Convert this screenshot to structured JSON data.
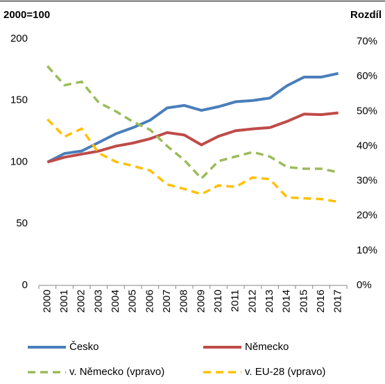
{
  "chart_data": {
    "type": "line",
    "y_label": "2000=100",
    "y2_label": "Rozdíl",
    "categories": [
      "2000",
      "2001",
      "2002",
      "2003",
      "2004",
      "2005",
      "2006",
      "2007",
      "2008",
      "2009",
      "2010",
      "2011",
      "2012",
      "2013",
      "2014",
      "2015",
      "2016",
      "2017"
    ],
    "ylim": [
      0,
      200
    ],
    "yticks": [
      0,
      50,
      100,
      150,
      200
    ],
    "y2lim": [
      0,
      70
    ],
    "y2ticks": [
      {
        "value": 0,
        "label": "0%"
      },
      {
        "value": 10,
        "label": "10%"
      },
      {
        "value": 20,
        "label": "20%"
      },
      {
        "value": 30,
        "label": "30%"
      },
      {
        "value": 40,
        "label": "40%"
      },
      {
        "value": 50,
        "label": "50%"
      },
      {
        "value": 60,
        "label": "60%"
      },
      {
        "value": 70,
        "label": "70%"
      }
    ],
    "grid": false,
    "legend": "bottom",
    "series": [
      {
        "name": "Česko",
        "color": "#4a7ebb",
        "dashed": false,
        "values": [
          100,
          107,
          109,
          116,
          123,
          128,
          134,
          144,
          146,
          142,
          145,
          149,
          150,
          152,
          162,
          169,
          169,
          172
        ]
      },
      {
        "name": "Německo",
        "color": "#be4b48",
        "dashed": false,
        "values": [
          100,
          104,
          106.5,
          109,
          113,
          115.5,
          119,
          124,
          122,
          114,
          121,
          125.5,
          127,
          128,
          133,
          139,
          138.5,
          140
        ]
      },
      {
        "name": "v. Německo (vpravo)",
        "color": "#9bbb59",
        "dashed": true,
        "axis": "y2",
        "values": [
          63,
          57.5,
          58.5,
          52.5,
          50,
          47,
          44.7,
          40,
          36,
          30.7,
          35.7,
          37,
          38.3,
          37,
          34,
          33.5,
          33.5,
          32.5
        ]
      },
      {
        "name": "v. EU-28 (vpravo)",
        "color": "#ffc000",
        "dashed": true,
        "axis": "y2",
        "values": [
          47.7,
          42.7,
          45,
          38,
          35.5,
          34.3,
          33,
          29,
          27.7,
          26.2,
          28.7,
          28.3,
          31,
          30.5,
          25.3,
          25,
          24.8,
          24
        ]
      }
    ]
  }
}
